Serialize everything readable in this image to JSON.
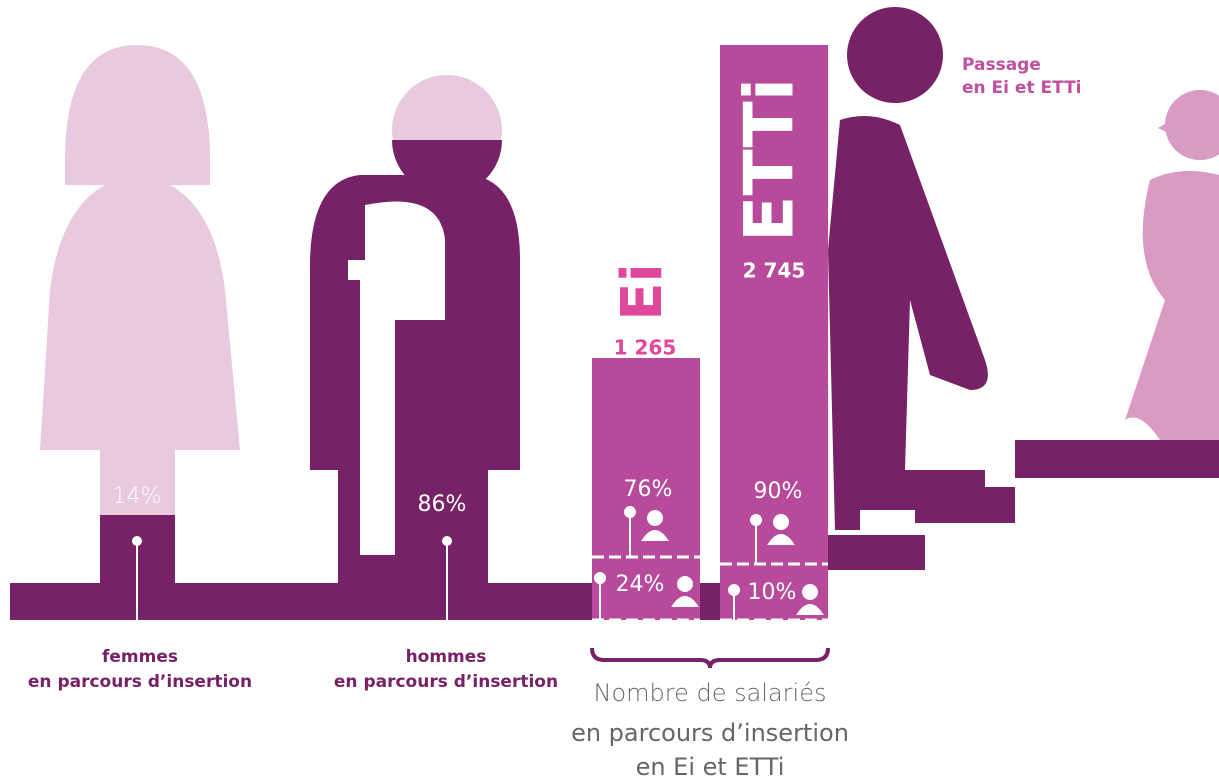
{
  "women": {
    "percent": "14%",
    "label": "femmes",
    "sublabel": "en parcours d’insertion"
  },
  "men": {
    "percent": "86%",
    "label": "hommes",
    "sublabel": "en parcours d’insertion"
  },
  "ei": {
    "logo": "Ei",
    "count": "1 265",
    "men_percent": "76%",
    "women_percent": "24%"
  },
  "etti": {
    "logo": "ETTi",
    "count": "2 745",
    "men_percent": "90%",
    "women_percent": "10%"
  },
  "caption": [
    "Nombre de salariés",
    "en parcours d’insertion",
    "en Ei et ETTi"
  ],
  "passage": [
    "Passage",
    "en Ei et ETTi"
  ]
}
